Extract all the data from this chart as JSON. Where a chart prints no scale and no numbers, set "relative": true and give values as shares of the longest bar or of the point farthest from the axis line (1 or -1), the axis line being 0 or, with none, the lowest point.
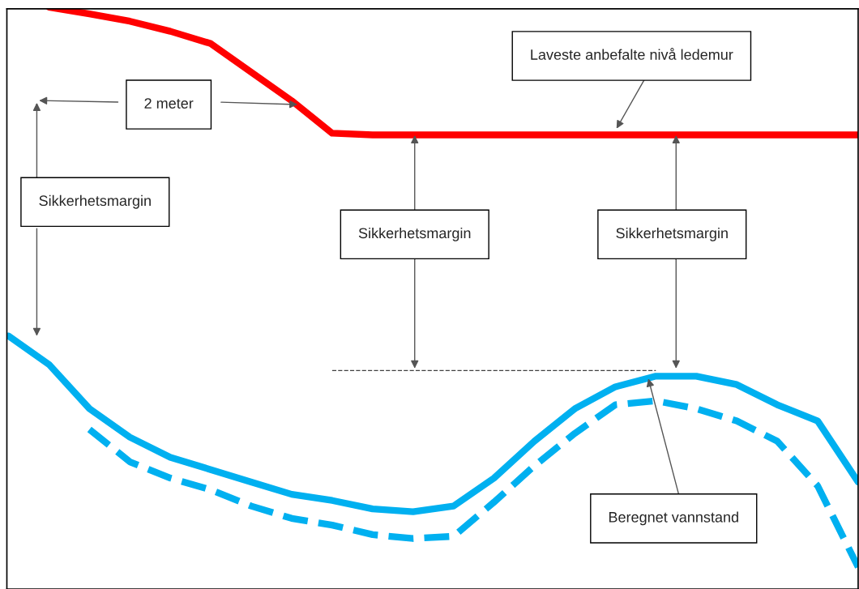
{
  "chart_data": {
    "type": "line",
    "relative": true,
    "categories": [
      null,
      null,
      null,
      null,
      null,
      null,
      null,
      null,
      null,
      null,
      null,
      null,
      null,
      null,
      null,
      null,
      null,
      null,
      null,
      null,
      null,
      null
    ],
    "series": [
      {
        "color": "#ff0000",
        "values": [
          null,
          1.0,
          0.988,
          0.975,
          0.957,
          0.935,
          0.884,
          0.833,
          0.775,
          0.772,
          0.772,
          0.772,
          0.772,
          0.772,
          0.772,
          0.772,
          0.772,
          0.772,
          0.772,
          0.772,
          0.772,
          0.772
        ]
      },
      {
        "color": "#00b0f0",
        "values": [
          0.413,
          0.362,
          0.283,
          0.232,
          0.196,
          0.174,
          0.152,
          0.13,
          0.119,
          0.104,
          0.099,
          0.109,
          0.159,
          0.225,
          0.283,
          0.322,
          0.341,
          0.341,
          0.326,
          0.29,
          0.261,
          0.152
        ]
      },
      {
        "color": "#00b0f0",
        "line_style": "dashed",
        "values": [
          null,
          null,
          0.246,
          0.188,
          0.159,
          0.138,
          0.109,
          0.087,
          0.075,
          0.058,
          0.051,
          0.055,
          0.116,
          0.181,
          0.239,
          0.29,
          0.297,
          0.283,
          0.261,
          0.225,
          0.145,
          0.0
        ]
      },
      {
        "color": "#404040",
        "line_style": "dashed",
        "values": [
          null,
          null,
          null,
          null,
          null,
          null,
          null,
          null,
          0.351,
          0.351,
          0.351,
          0.351,
          0.351,
          0.351,
          0.351,
          0.351,
          0.351,
          null,
          null,
          null,
          null,
          null
        ]
      }
    ],
    "annotations": [
      "Laveste anbefalte nivå ledemur",
      "2 meter",
      "Sikkerhetsmargin",
      "Sikkerhetsmargin",
      "Sikkerhetsmargin",
      "Beregnet vannstand"
    ],
    "legend": false
  }
}
